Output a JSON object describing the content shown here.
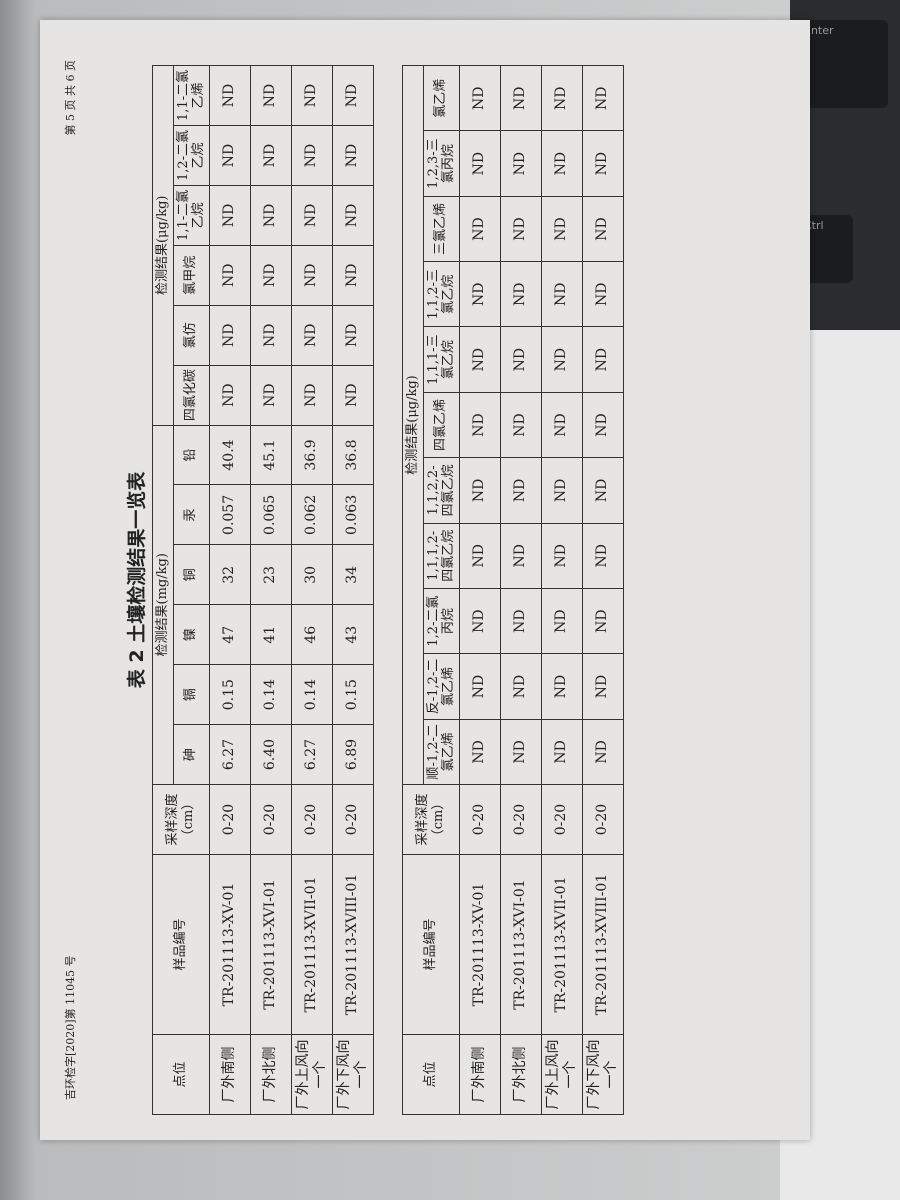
{
  "header": {
    "doc_number": "吉环检字[2020]第 11045 号",
    "page_info": "第 5 页 共 6 页"
  },
  "title": "表 2 土壤检测结果一览表",
  "table1": {
    "col_site": "点位",
    "col_sample": "样品编号",
    "col_depth": "采样深度（cm）",
    "group_mg": "检测结果(mg/kg)",
    "group_ug": "检测结果(μg/kg)",
    "mg_cols": [
      "砷",
      "镉",
      "镍",
      "铜",
      "汞",
      "铅"
    ],
    "ug_cols": [
      "四氯化碳",
      "氯仿",
      "氯甲烷",
      "1,1-二氯乙烷",
      "1,2-二氯乙烷",
      "1,1-二氯乙烯"
    ],
    "rows": [
      {
        "site": "厂外南侧",
        "sample": "TR-201113-XV-01",
        "depth": "0-20",
        "v": [
          "6.27",
          "0.15",
          "47",
          "32",
          "0.057",
          "40.4",
          "ND",
          "ND",
          "ND",
          "ND",
          "ND",
          "ND"
        ]
      },
      {
        "site": "厂外北侧",
        "sample": "TR-201113-XVI-01",
        "depth": "0-20",
        "v": [
          "6.40",
          "0.14",
          "41",
          "23",
          "0.065",
          "45.1",
          "ND",
          "ND",
          "ND",
          "ND",
          "ND",
          "ND"
        ]
      },
      {
        "site": "厂外上风向一个",
        "sample": "TR-201113-XVII-01",
        "depth": "0-20",
        "v": [
          "6.27",
          "0.14",
          "46",
          "30",
          "0.062",
          "36.9",
          "ND",
          "ND",
          "ND",
          "ND",
          "ND",
          "ND"
        ]
      },
      {
        "site": "厂外下风向一个",
        "sample": "TR-201113-XVIII-01",
        "depth": "0-20",
        "v": [
          "6.89",
          "0.15",
          "43",
          "34",
          "0.063",
          "36.8",
          "ND",
          "ND",
          "ND",
          "ND",
          "ND",
          "ND"
        ]
      }
    ]
  },
  "table2": {
    "col_site": "点位",
    "col_sample": "样品编号",
    "col_depth": "采样深度（cm）",
    "group_ug": "检测结果(μg/kg)",
    "ug_cols": [
      "顺-1,2-二氯乙烯",
      "反-1,2-二氯乙烯",
      "1,2-二氯丙烷",
      "1,1,1,2-四氯乙烷",
      "1,1,2,2-四氯乙烷",
      "四氯乙烯",
      "1,1,1-三氯乙烷",
      "1,1,2-三氯乙烷",
      "三氯乙烯",
      "1,2,3-三氯丙烷",
      "氯乙烯"
    ],
    "rows": [
      {
        "site": "厂外南侧",
        "sample": "TR-201113-XV-01",
        "depth": "0-20",
        "v": [
          "ND",
          "ND",
          "ND",
          "ND",
          "ND",
          "ND",
          "ND",
          "ND",
          "ND",
          "ND",
          "ND"
        ]
      },
      {
        "site": "厂外北侧",
        "sample": "TR-201113-XVI-01",
        "depth": "0-20",
        "v": [
          "ND",
          "ND",
          "ND",
          "ND",
          "ND",
          "ND",
          "ND",
          "ND",
          "ND",
          "ND",
          "ND"
        ]
      },
      {
        "site": "厂外上风向一个",
        "sample": "TR-201113-XVII-01",
        "depth": "0-20",
        "v": [
          "ND",
          "ND",
          "ND",
          "ND",
          "ND",
          "ND",
          "ND",
          "ND",
          "ND",
          "ND",
          "ND"
        ]
      },
      {
        "site": "厂外下风向一个",
        "sample": "TR-201113-XVIII-01",
        "depth": "0-20",
        "v": [
          "ND",
          "ND",
          "ND",
          "ND",
          "ND",
          "ND",
          "ND",
          "ND",
          "ND",
          "ND",
          "ND"
        ]
      }
    ]
  },
  "keyboard": {
    "enter": "Enter",
    "ctrl": "Ctrl"
  }
}
